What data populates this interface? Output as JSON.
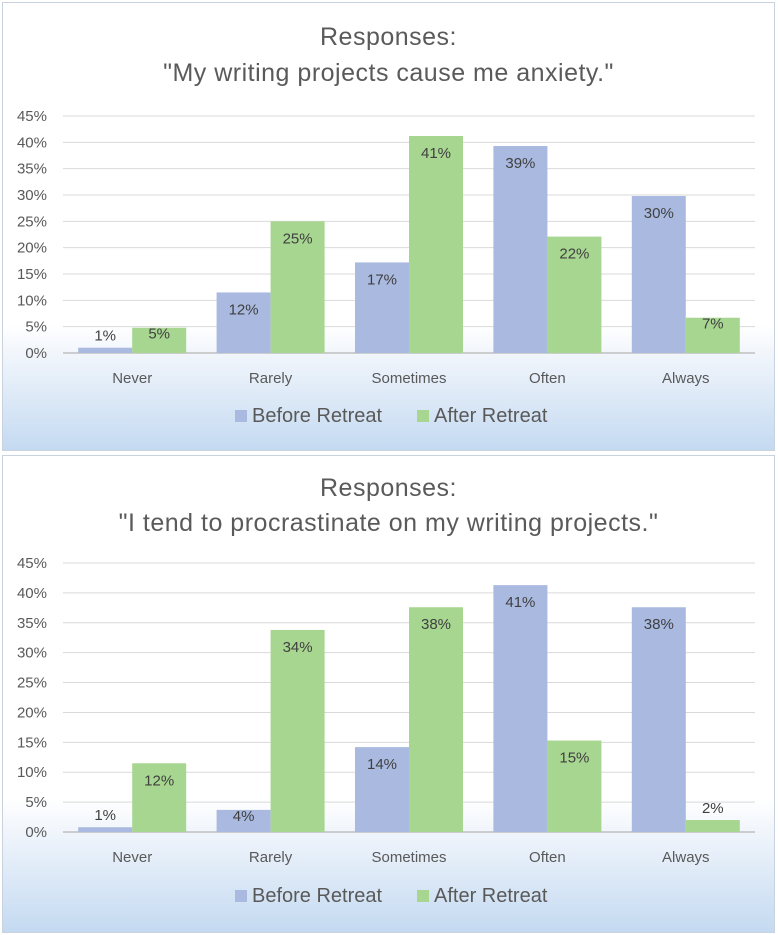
{
  "colors": {
    "before": "#a9b9e0",
    "after": "#a7d690",
    "grid": "#d9d9d9",
    "axis": "#bfbfbf"
  },
  "chart_data": [
    {
      "type": "bar",
      "title_line1": "Responses:",
      "title_line2": "\"My writing projects cause me anxiety.\"",
      "categories": [
        "Never",
        "Rarely",
        "Sometimes",
        "Often",
        "Always"
      ],
      "y_ticks": [
        "0%",
        "5%",
        "10%",
        "15%",
        "20%",
        "25%",
        "30%",
        "35%",
        "40%",
        "45%"
      ],
      "ylim": [
        0,
        45
      ],
      "legend_position": "bottom",
      "series": [
        {
          "name": "Before Retreat",
          "values": [
            1,
            11.5,
            17.2,
            39.3,
            29.8
          ],
          "labels": [
            "1%",
            "12%",
            "17%",
            "39%",
            "30%"
          ]
        },
        {
          "name": "After Retreat",
          "values": [
            4.8,
            25,
            41.2,
            22.1,
            6.7
          ],
          "labels": [
            "5%",
            "25%",
            "41%",
            "22%",
            "7%"
          ]
        }
      ]
    },
    {
      "type": "bar",
      "title_line1": "Responses:",
      "title_line2": "\"I tend to procrastinate on my writing projects.\"",
      "categories": [
        "Never",
        "Rarely",
        "Sometimes",
        "Often",
        "Always"
      ],
      "y_ticks": [
        "0%",
        "5%",
        "10%",
        "15%",
        "20%",
        "25%",
        "30%",
        "35%",
        "40%",
        "45%"
      ],
      "ylim": [
        0,
        45
      ],
      "legend_position": "bottom",
      "series": [
        {
          "name": "Before Retreat",
          "values": [
            0.8,
            3.7,
            14.2,
            41.3,
            37.6
          ],
          "labels": [
            "1%",
            "4%",
            "14%",
            "41%",
            "38%"
          ]
        },
        {
          "name": "After Retreat",
          "values": [
            11.5,
            33.8,
            37.6,
            15.3,
            2
          ],
          "labels": [
            "12%",
            "34%",
            "38%",
            "15%",
            "2%"
          ]
        }
      ]
    }
  ]
}
